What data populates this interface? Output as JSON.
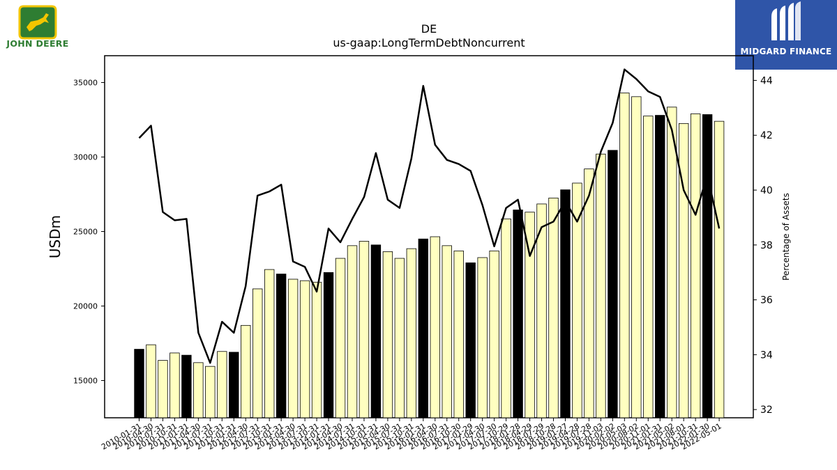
{
  "header": {
    "ticker": "DE",
    "metric": "us-gaap:LongTermDebtNoncurrent"
  },
  "logos": {
    "left_text": "JOHN DEERE",
    "right_text": "MIDGARD FINANCE"
  },
  "colors": {
    "bar_quarter": "#ffffc0",
    "bar_fiscal_year_end": "#000000",
    "line": "#000000"
  },
  "chart_data": {
    "type": "bar",
    "ylabel": "USDm",
    "y2label": "Percentage of Assets",
    "ylim": [
      12500,
      36800
    ],
    "y2lim": [
      31.7,
      44.9
    ],
    "yticks": [
      15000,
      20000,
      25000,
      30000,
      35000
    ],
    "y2ticks": [
      32,
      34,
      36,
      38,
      40,
      42,
      44
    ],
    "categories": [
      "2010-01-31",
      "2010-04-30",
      "2010-07-31",
      "2010-10-31",
      "2011-01-31",
      "2011-04-30",
      "2011-07-31",
      "2011-10-31",
      "2012-01-31",
      "2012-04-30",
      "2012-07-31",
      "2012-10-31",
      "2013-01-31",
      "2013-04-30",
      "2013-07-31",
      "2013-10-31",
      "2014-01-31",
      "2014-04-30",
      "2014-07-31",
      "2014-10-31",
      "2015-01-31",
      "2015-04-30",
      "2015-07-31",
      "2015-10-31",
      "2016-01-31",
      "2016-04-30",
      "2016-07-31",
      "2016-10-30",
      "2017-01-29",
      "2017-04-30",
      "2017-07-30",
      "2017-10-29",
      "2018-01-28",
      "2018-04-29",
      "2018-07-29",
      "2018-10-28",
      "2019-01-27",
      "2019-04-28",
      "2019-07-28",
      "2019-11-03",
      "2020-02-02",
      "2020-05-03",
      "2020-08-02",
      "2020-11-01",
      "2021-01-31",
      "2021-05-02",
      "2021-08-01",
      "2021-10-31",
      "2022-01-30",
      "2022-05-01"
    ],
    "series": [
      {
        "type": "bar",
        "values": [
          17100,
          17400,
          16350,
          16850,
          16700,
          16200,
          15950,
          16950,
          16900,
          18700,
          21150,
          22450,
          22150,
          21800,
          21700,
          21600,
          22250,
          23200,
          24050,
          24350,
          24100,
          23650,
          23200,
          23850,
          24500,
          24650,
          24050,
          23700,
          22900,
          23250,
          23700,
          25850,
          26450,
          26300,
          26850,
          27250,
          27800,
          28250,
          29200,
          30200,
          30450,
          34300,
          34050,
          32750,
          32800,
          33350,
          32250,
          32900,
          32850,
          32400
        ],
        "fiscal_year_end": [
          true,
          false,
          false,
          false,
          true,
          false,
          false,
          false,
          true,
          false,
          false,
          false,
          true,
          false,
          false,
          false,
          true,
          false,
          false,
          false,
          true,
          false,
          false,
          false,
          true,
          false,
          false,
          false,
          true,
          false,
          false,
          false,
          true,
          false,
          false,
          false,
          true,
          false,
          false,
          false,
          true,
          false,
          false,
          false,
          true,
          false,
          false,
          false,
          true,
          false
        ]
      },
      {
        "name": "Percentage of Assets",
        "type": "line",
        "axis": "right",
        "values": [
          41.9,
          42.35,
          39.2,
          38.9,
          38.95,
          34.8,
          33.7,
          35.2,
          34.8,
          36.5,
          39.8,
          39.95,
          40.2,
          37.4,
          37.2,
          36.3,
          38.6,
          38.1,
          38.95,
          39.75,
          41.35,
          39.65,
          39.35,
          41.15,
          43.8,
          41.65,
          41.1,
          40.95,
          40.7,
          39.45,
          37.95,
          39.35,
          39.65,
          37.6,
          38.65,
          38.85,
          39.6,
          38.85,
          39.8,
          41.4,
          42.45,
          44.4,
          44.05,
          43.6,
          43.4,
          42.2,
          40.0,
          39.1,
          40.55,
          38.6
        ]
      }
    ]
  }
}
